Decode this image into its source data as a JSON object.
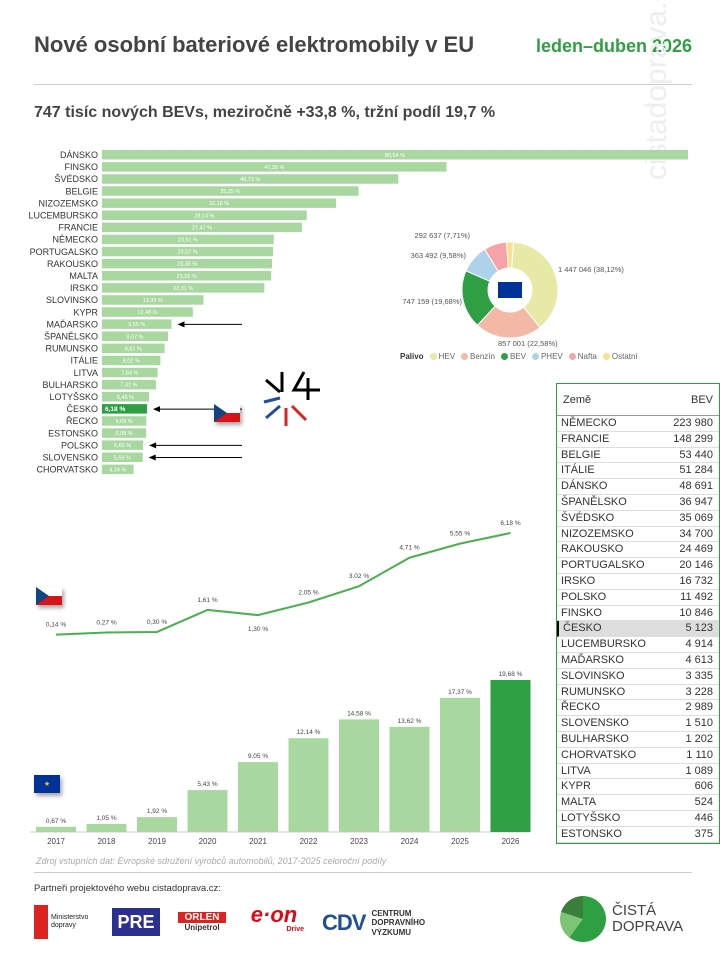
{
  "header": {
    "title": "Nové osobní bateriové elektromobily v EU",
    "period": "leden–duben 2026",
    "subtitle": "747 tisíc nových BEVs, meziročně +33,8 %, tržní podíl 19,7 %"
  },
  "watermark": "cistadoprava.cz",
  "colors": {
    "bar_light": "#a8d8a0",
    "bar_cz": "#2ea043",
    "accent": "#2ea043",
    "line": "#4caf50"
  },
  "chart_data": [
    {
      "type": "bar",
      "orientation": "horizontal",
      "categories": [
        "DÁNSKO",
        "FINSKO",
        "ŠVÉDSKO",
        "BELGIE",
        "NIZOZEMSKO",
        "LUCEMBURSKO",
        "FRANCIE",
        "NĚMECKO",
        "PORTUGALSKO",
        "RAKOUSKO",
        "MALTA",
        "IRSKO",
        "SLOVINSKO",
        "KYPR",
        "MAĎARSKO",
        "ŠPANĚLSKO",
        "RUMUNSKO",
        "ITÁLIE",
        "LITVA",
        "BULHARSKO",
        "LOTYŠSKO",
        "ČESKO",
        "ŘECKO",
        "ESTONSKO",
        "POLSKO",
        "SLOVENSKO",
        "CHORVATSKO"
      ],
      "values": [
        80.54,
        47.35,
        40.73,
        35.25,
        32.18,
        28.14,
        27.47,
        23.61,
        23.52,
        23.38,
        23.26,
        22.31,
        13.95,
        12.48,
        9.55,
        9.07,
        8.61,
        8.02,
        7.64,
        7.42,
        6.46,
        6.18,
        6.09,
        6.08,
        5.65,
        5.59,
        4.34
      ],
      "value_labels": [
        "80,54 %",
        "47,35 %",
        "40,73 %",
        "35,25 %",
        "32,18 %",
        "28,14 %",
        "27,47 %",
        "23,61 %",
        "23,52 %",
        "23,38 %",
        "23,26 %",
        "22,31 %",
        "13,95 %",
        "12,48 %",
        "9,55 %",
        "9,07 %",
        "8,61 %",
        "8,02 %",
        "7,64 %",
        "7,42 %",
        "6,46 %",
        "6,18 %",
        "6,09 %",
        "6,08 %",
        "5,65 %",
        "5,59 %",
        "4,34 %"
      ],
      "highlight": "ČESKO",
      "arrows": [
        "MAĎARSKO",
        "ČESKO",
        "POLSKO",
        "SLOVENSKO"
      ]
    },
    {
      "type": "pie",
      "donut": true,
      "legend_title": "Palivo",
      "slices": [
        {
          "name": "HEV",
          "value": 1447046,
          "pct": 38.12,
          "label": "1 447 046 (38,12%)",
          "color": "#e6eaa6"
        },
        {
          "name": "Benzín",
          "value": 857001,
          "pct": 22.58,
          "label": "857 001 (22,58%)",
          "color": "#f4b8a6"
        },
        {
          "name": "BEV",
          "value": 747159,
          "pct": 19.68,
          "label": "747 159 (19,68%)",
          "color": "#2ea043"
        },
        {
          "name": "PHEV",
          "value": 363492,
          "pct": 9.58,
          "label": "363 492 (9,58%)",
          "color": "#aed2ea"
        },
        {
          "name": "Nafta",
          "value": 292637,
          "pct": 7.71,
          "label": "292 637 (7,71%)",
          "color": "#f5a3a8"
        },
        {
          "name": "Ostatní",
          "value": 0,
          "pct": 2.33,
          "label": "",
          "color": "#f7e18c"
        }
      ]
    },
    {
      "type": "line",
      "categories": [
        "2017",
        "2018",
        "2019",
        "2020",
        "2021",
        "2022",
        "2023",
        "2024",
        "2025",
        "2026"
      ],
      "values": [
        0.14,
        0.27,
        0.3,
        1.61,
        1.3,
        2.05,
        3.02,
        4.71,
        5.55,
        6.18
      ],
      "value_labels": [
        "0,14 %",
        "0,27 %",
        "0,30 %",
        "1,61 %",
        "1,30 %",
        "2,05 %",
        "3,02 %",
        "4,71 %",
        "5,55 %",
        "6,18 %"
      ]
    },
    {
      "type": "bar",
      "categories": [
        "2017",
        "2018",
        "2019",
        "2020",
        "2021",
        "2022",
        "2023",
        "2024",
        "2025",
        "2026"
      ],
      "values": [
        0.67,
        1.05,
        1.92,
        5.43,
        9.05,
        12.14,
        14.58,
        13.62,
        17.37,
        19.68
      ],
      "value_labels": [
        "0,67 %",
        "1,05 %",
        "1,92 %",
        "5,43 %",
        "9,05 %",
        "12,14 %",
        "14,58 %",
        "13,62 %",
        "17,37 %",
        "19,68 %"
      ],
      "highlight": "2026"
    }
  ],
  "table": {
    "headers": [
      "Země",
      "BEV"
    ],
    "rows": [
      [
        "NĚMECKO",
        "223 980"
      ],
      [
        "FRANCIE",
        "148 299"
      ],
      [
        "BELGIE",
        "53 440"
      ],
      [
        "ITÁLIE",
        "51 284"
      ],
      [
        "DÁNSKO",
        "48 691"
      ],
      [
        "ŠPANĚLSKO",
        "36 947"
      ],
      [
        "ŠVÉDSKO",
        "35 069"
      ],
      [
        "NIZOZEMSKO",
        "34 700"
      ],
      [
        "RAKOUSKO",
        "24 469"
      ],
      [
        "PORTUGALSKO",
        "20 146"
      ],
      [
        "IRSKO",
        "16 732"
      ],
      [
        "POLSKO",
        "11 492"
      ],
      [
        "FINSKO",
        "10 846"
      ],
      [
        "ČESKO",
        "5 123"
      ],
      [
        "LUCEMBURSKO",
        "4 914"
      ],
      [
        "MAĎARSKO",
        "4 613"
      ],
      [
        "SLOVINSKO",
        "3 335"
      ],
      [
        "RUMUNSKO",
        "3 228"
      ],
      [
        "ŘECKO",
        "2 989"
      ],
      [
        "SLOVENSKO",
        "1 510"
      ],
      [
        "BULHARSKO",
        "1 202"
      ],
      [
        "CHORVATSKO",
        "1 110"
      ],
      [
        "LITVA",
        "1 089"
      ],
      [
        "KYPR",
        "606"
      ],
      [
        "MALTA",
        "524"
      ],
      [
        "LOTYŠSKO",
        "446"
      ],
      [
        "ESTONSKO",
        "375"
      ]
    ],
    "highlight": "ČESKO"
  },
  "footer": {
    "source": "Zdroj vstupních dat: Evropské sdružení výrobců automobilů, 2017-2025 celoroční podíly",
    "partners_label": "Partneři projektového webu cistadoprava.cz:",
    "logos": {
      "md": "Ministerstvo dopravy",
      "pre": "PRE",
      "orlen": "ORLEN",
      "orlen_sub": "Unipetrol",
      "eon": "e·on",
      "eon_sub": "Drive",
      "cdv": "CDV",
      "cdv_text": "CENTRUM DOPRAVNÍHO VÝZKUMU",
      "cd1": "ČISTÁ",
      "cd2": "DOPRAVA"
    }
  }
}
